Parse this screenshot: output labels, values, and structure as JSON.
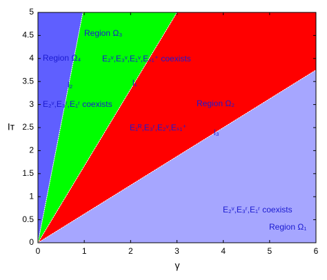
{
  "chart_data": {
    "type": "region",
    "xlabel": "γ",
    "ylabel": "Iᴛ",
    "xlim": [
      0,
      6
    ],
    "ylim": [
      0,
      5
    ],
    "xticks": [
      0,
      1,
      2,
      3,
      4,
      5,
      6
    ],
    "yticks": [
      0,
      0.5,
      1,
      1.5,
      2,
      2.5,
      3,
      3.5,
      4,
      4.5,
      5
    ],
    "lines": [
      {
        "name": "l₂",
        "x": [
          0,
          0.97
        ],
        "y": [
          0,
          5
        ]
      },
      {
        "name": "l₁",
        "x": [
          0,
          3
        ],
        "y": [
          0,
          5
        ]
      },
      {
        "name": "l₃",
        "x": [
          0,
          6
        ],
        "y": [
          0,
          3.75
        ]
      }
    ],
    "regions": [
      {
        "name": "Region Ω₄",
        "text": "E₂ᵛ,E₃ʳ,E₁ʳ coexists",
        "color": "#5f5fff"
      },
      {
        "name": "Region Ω₃",
        "text": "E₂ᵛ,E₃ᵛ,E₁ᵛ,Eₛ₁⁺  coexists",
        "color": "#00ff00"
      },
      {
        "name": "Region Ω₂",
        "text": "E₁ᴿ,E₃ʳ,E₂ᵛ,Eₛ₁⁺",
        "color": "#ff0000"
      },
      {
        "name": "Region Ω₁",
        "text": "E₂ᵛ,E₃ʳ,E₁ʳ coexists",
        "color": "#a6a6ff"
      }
    ]
  }
}
